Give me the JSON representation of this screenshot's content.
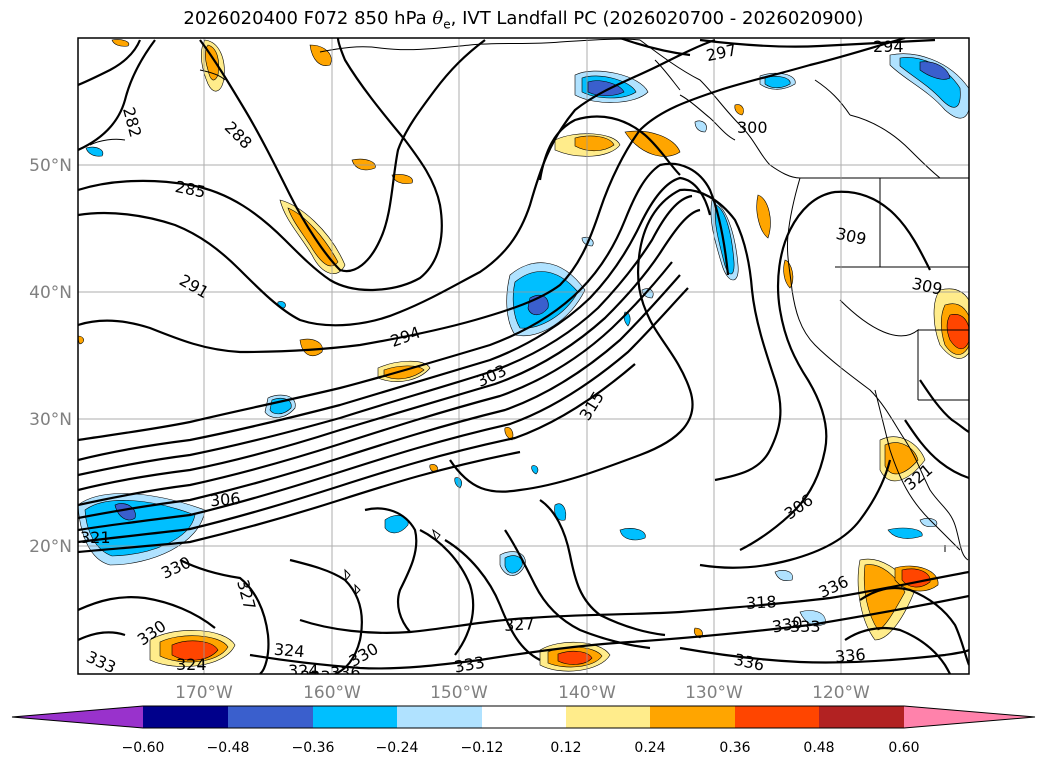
{
  "title": {
    "prefix": "2026020400 F072 850 hPa ",
    "theta": "θ",
    "sub": "e",
    "suffix": ", IVT Landfall PC (2026020700 - 2026020900)"
  },
  "map": {
    "lat_labels": [
      "50°N",
      "40°N",
      "30°N",
      "20°N"
    ],
    "lon_labels": [
      "170°W",
      "160°W",
      "150°W",
      "140°W",
      "130°W",
      "120°W"
    ],
    "contour_labels": [
      "282",
      "288",
      "285",
      "291",
      "294",
      "294",
      "297",
      "300",
      "303",
      "306",
      "306",
      "309",
      "309",
      "315",
      "318",
      "321",
      "324",
      "324",
      "327",
      "327",
      "330",
      "330",
      "330",
      "330",
      "333",
      "333",
      "333",
      "333",
      "336",
      "336",
      "336",
      "336",
      "321",
      "324"
    ]
  },
  "colorbar": {
    "ticks": [
      "−0.60",
      "−0.48",
      "−0.36",
      "−0.24",
      "−0.12",
      "0.12",
      "0.24",
      "0.36",
      "0.48",
      "0.60"
    ],
    "colors": [
      "#9932cc",
      "#00008b",
      "#3a5fcd",
      "#00bfff",
      "#b0e2ff",
      "#ffffff",
      "#ffec8b",
      "#ffa500",
      "#ff4500",
      "#b22222",
      "#ff82ab"
    ]
  }
}
